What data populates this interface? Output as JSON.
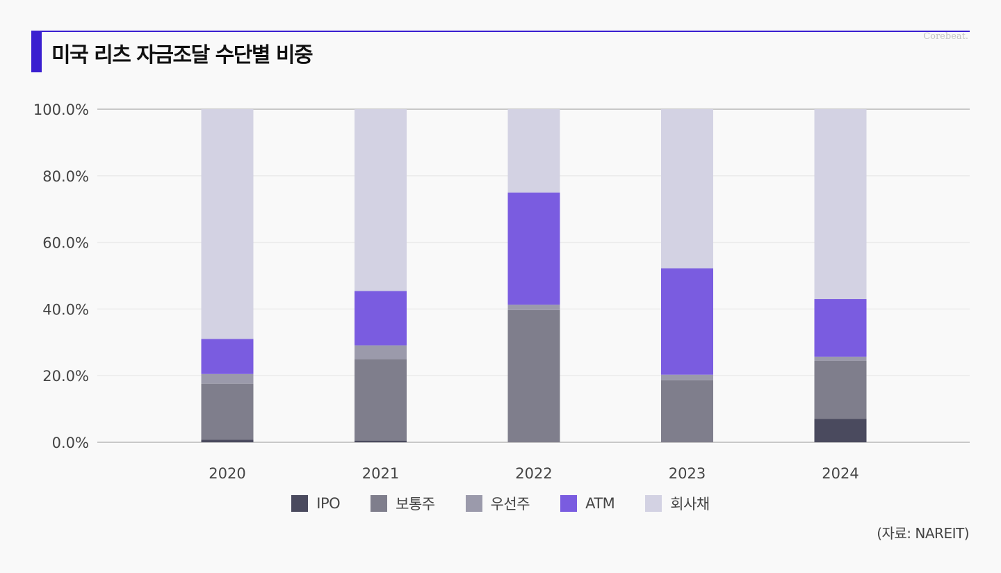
{
  "header": {
    "title": "미국 리츠 자금조달 수단별 비중",
    "brand": "Corebeat."
  },
  "source": "(자료: NAREIT)",
  "colors": {
    "accent": "#3a1fd0",
    "series": [
      "#4a4a5e",
      "#7f7e8c",
      "#9b9aab",
      "#7a5ce0",
      "#d3d2e3"
    ],
    "grid": "#ebebeb",
    "axis": "#c8c8c8"
  },
  "chart_data": {
    "type": "bar",
    "stacked": true,
    "categories": [
      "2020",
      "2021",
      "2022",
      "2023",
      "2024"
    ],
    "series": [
      {
        "name": "IPO",
        "values": [
          0.8,
          0.5,
          0.0,
          0.0,
          7.0
        ]
      },
      {
        "name": "보통주",
        "values": [
          16.8,
          24.5,
          39.7,
          18.6,
          17.5
        ]
      },
      {
        "name": "우선주",
        "values": [
          2.9,
          4.1,
          1.6,
          1.7,
          1.2
        ]
      },
      {
        "name": "ATM",
        "values": [
          10.5,
          16.3,
          33.7,
          31.9,
          17.3
        ]
      },
      {
        "name": "회사채",
        "values": [
          69.0,
          54.6,
          25.0,
          47.8,
          57.0
        ]
      }
    ],
    "ylim": [
      0,
      100
    ],
    "yticks": [
      "0.0%",
      "20.0%",
      "40.0%",
      "60.0%",
      "80.0%",
      "100.0%"
    ],
    "grid": true,
    "legend_position": "bottom"
  }
}
